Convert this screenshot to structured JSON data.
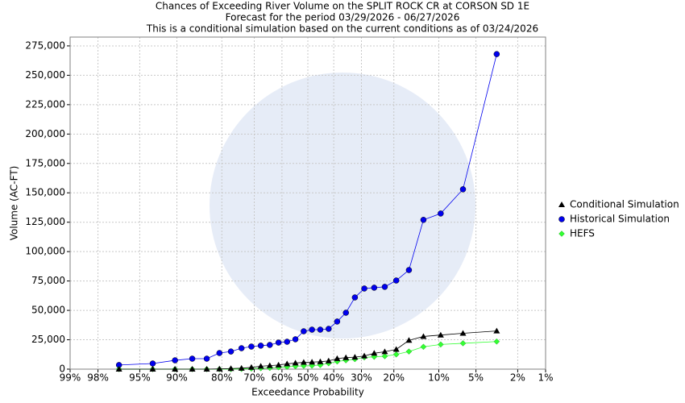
{
  "chart_data": {
    "type": "line",
    "title": "Chances of Exceeding River Volume on the SPLIT ROCK CR at CORSON SD 1E",
    "subtitle": "Forecast for the period 03/29/2026 - 06/27/2026",
    "note": "This is a conditional simulation based on the current conditions as of 03/24/2026",
    "xlabel": "Exceedance Probability",
    "ylabel": "Volume (AC-FT)",
    "xscale": "probability",
    "grid": true,
    "legend": "right",
    "x": [
      96.77,
      93.55,
      90.32,
      87.1,
      83.87,
      80.65,
      77.42,
      74.19,
      70.97,
      67.74,
      64.52,
      61.29,
      58.06,
      54.84,
      51.61,
      48.39,
      45.16,
      41.94,
      38.71,
      35.48,
      32.26,
      29.03,
      25.81,
      22.58,
      19.35,
      16.13,
      12.9,
      9.68,
      6.45,
      3.23
    ],
    "series": [
      {
        "name": "Conditional Simulation",
        "color": "#000000",
        "marker": "triangle",
        "values": [
          0,
          0,
          0,
          0,
          0,
          200,
          500,
          800,
          1500,
          2500,
          3000,
          3500,
          4500,
          5200,
          5800,
          6000,
          6300,
          7000,
          9000,
          9800,
          10200,
          11200,
          13500,
          14800,
          16800,
          24500,
          27800,
          29000,
          30500,
          32500
        ]
      },
      {
        "name": "Historical Simulation",
        "color": "#0000ee",
        "marker": "circle",
        "values": [
          3500,
          4800,
          7500,
          8900,
          8900,
          13700,
          15000,
          17800,
          19200,
          20000,
          20600,
          22600,
          23300,
          25400,
          32200,
          33600,
          33600,
          34300,
          40500,
          48000,
          61000,
          68600,
          69300,
          70000,
          75400,
          84300,
          127000,
          132400,
          153000,
          268000
        ]
      },
      {
        "name": "HEFS",
        "color": "#33ff33",
        "marker": "diamond",
        "values": [
          0,
          0,
          0,
          0,
          0,
          0,
          0,
          200,
          500,
          800,
          1000,
          1500,
          2000,
          2500,
          2800,
          3000,
          3500,
          5000,
          6500,
          7500,
          8500,
          10000,
          10500,
          11000,
          12500,
          15000,
          19000,
          21000,
          22000,
          23500
        ]
      }
    ],
    "xlim": [
      99,
      1
    ],
    "xticks": [
      {
        "value": 99,
        "label": "99%"
      },
      {
        "value": 98,
        "label": "98%"
      },
      {
        "value": 95,
        "label": "95%"
      },
      {
        "value": 90,
        "label": "90%"
      },
      {
        "value": 80,
        "label": "80%"
      },
      {
        "value": 70,
        "label": "70%"
      },
      {
        "value": 60,
        "label": "60%"
      },
      {
        "value": 50,
        "label": "50%"
      },
      {
        "value": 40,
        "label": "40%"
      },
      {
        "value": 30,
        "label": "30%"
      },
      {
        "value": 20,
        "label": "20%"
      },
      {
        "value": 10,
        "label": "10%"
      },
      {
        "value": 5,
        "label": "5%"
      },
      {
        "value": 2,
        "label": "2%"
      },
      {
        "value": 1,
        "label": "1%"
      }
    ],
    "ylim": [
      0,
      282500
    ],
    "yticks": [
      0,
      {
        "value": 25000,
        "label": "25,000"
      },
      {
        "value": 50000,
        "label": "50,000"
      },
      {
        "value": 75000,
        "label": "75,000"
      },
      {
        "value": 100000,
        "label": "100,000"
      },
      {
        "value": 125000,
        "label": "125,000"
      },
      {
        "value": 150000,
        "label": "150,000"
      },
      {
        "value": 175000,
        "label": "175,000"
      },
      {
        "value": 200000,
        "label": "200,000"
      },
      {
        "value": 225000,
        "label": "225,000"
      },
      {
        "value": 250000,
        "label": "250,000"
      },
      {
        "value": 275000,
        "label": "275,000"
      }
    ]
  }
}
